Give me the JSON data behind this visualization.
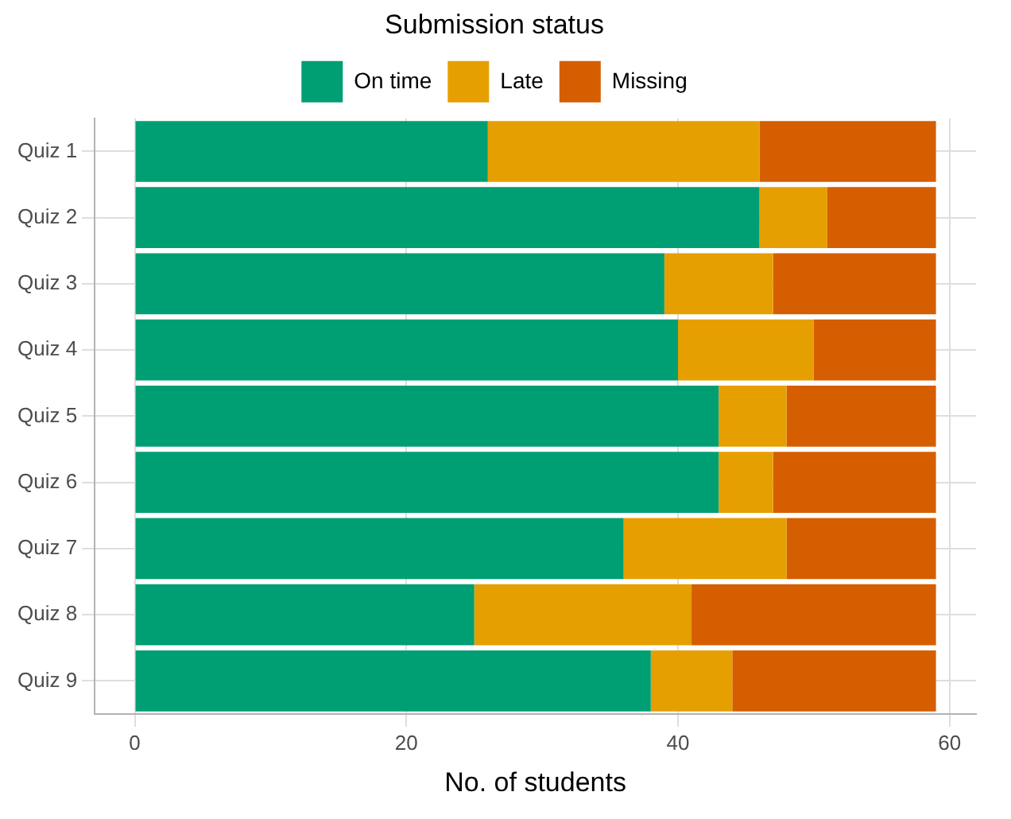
{
  "chart_data": {
    "type": "bar",
    "orientation": "horizontal",
    "stacked": true,
    "xlabel": "No. of students",
    "legend_title": "Submission status",
    "legend": "top",
    "categories": [
      "Quiz 1",
      "Quiz 2",
      "Quiz 3",
      "Quiz 4",
      "Quiz 5",
      "Quiz 6",
      "Quiz 7",
      "Quiz 8",
      "Quiz 9"
    ],
    "series": [
      {
        "name": "On time",
        "color": "#009e73",
        "values": [
          26,
          46,
          39,
          40,
          43,
          43,
          36,
          25,
          38
        ]
      },
      {
        "name": "Late",
        "color": "#e69f00",
        "values": [
          20,
          5,
          8,
          10,
          5,
          4,
          12,
          16,
          6
        ]
      },
      {
        "name": "Missing",
        "color": "#d55e00",
        "values": [
          13,
          8,
          12,
          9,
          11,
          12,
          11,
          18,
          15
        ]
      }
    ],
    "xlim": [
      -2.95,
      61.95
    ],
    "xticks": [
      0,
      20,
      40,
      60
    ],
    "grid": true
  }
}
